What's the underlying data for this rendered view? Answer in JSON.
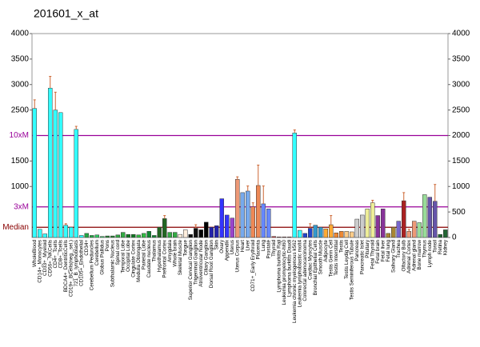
{
  "chart_data": {
    "type": "bar",
    "title": "201601_x_at",
    "categories": [
      "WholeBlood",
      "CD14+_Monocytes",
      "CD33+_Myeloid",
      "CD56+_NKCells",
      "CD4+_Tcells",
      "CD8+_Tcells",
      "BDCA4+_DentriticCells",
      "CD19+_BCells(neg._sel.)",
      "721_B_lymphoblasts",
      "CD105+_Endothelial",
      "CD34+",
      "Cerebellum Peduncles",
      "Cerebellum",
      "Globus Pallidus",
      "Pons",
      "Subthalamic Nucleus",
      "Spinal cord",
      "Temporal Lobe",
      "Occipital Lobe",
      "Cingulate Cortex",
      "Medulla Oblongata",
      "Parietal Lobe",
      "Caudate nucleus",
      "Thalamus",
      "Hypothalamus",
      "Prefrontal Cortex",
      "Amygdala",
      "Whole brain",
      "Skeletal Muscle",
      "Tongue",
      "Superior Cervical Ganglion",
      "Trigeminal Ganglion",
      "Atrioventricular Node",
      "Ciliary Ganglion",
      "Dorsal Root Ganglion",
      "Skin",
      "Ovary",
      "Appendix",
      "Uterus",
      "Uterus Corpus",
      "Heart",
      "Liver",
      "CD71+_Early Erythroid",
      "Placenta",
      "Lung",
      "Prostate",
      "Thyroid",
      "Lymphoma burkitts Raji",
      "Leukemia promyelocytic-hl60",
      "Lymphoma burkitts Daudi",
      "Leukemia chronic myelogenous k562",
      "Leukemia lymphoblastic molt4",
      "Colorectal adenocarcinoma",
      "Cardiac Myocytes",
      "Bronchial Epithelial Cells",
      "Smooth Muscle",
      "Adipocyte",
      "Testis Germ Cell",
      "Testis Interstitial",
      "Testis",
      "Testis Leydig Cell",
      "Testis Seminiferous Tubule",
      "Pancreas",
      "Pancreatic Islet",
      "Pituitary",
      "Fetal Thyroid",
      "Fetal brain",
      "Fetal liver",
      "Fetal lung",
      "Salivary Gland",
      "Trachea",
      "Olfactory Bulb",
      "Adrenal Cortex",
      "Adrenal gland",
      "Bone marrow",
      "Thymus",
      "Lymph node",
      "Tonsil",
      "Retina",
      "Kidney"
    ],
    "values": [
      2530,
      160,
      70,
      2930,
      2500,
      2450,
      240,
      200,
      2120,
      40,
      80,
      40,
      50,
      20,
      30,
      30,
      50,
      100,
      60,
      60,
      50,
      80,
      120,
      40,
      200,
      370,
      100,
      100,
      60,
      150,
      60,
      180,
      150,
      300,
      200,
      230,
      760,
      440,
      380,
      1140,
      880,
      910,
      600,
      1020,
      660,
      560,
      20,
      10,
      10,
      10,
      2050,
      140,
      80,
      180,
      240,
      200,
      170,
      250,
      90,
      120,
      120,
      110,
      360,
      440,
      560,
      680,
      430,
      560,
      80,
      200,
      320,
      720,
      120,
      320,
      290,
      840,
      790,
      710,
      60,
      150
    ],
    "errors": [
      170,
      null,
      null,
      230,
      350,
      null,
      30,
      null,
      60,
      null,
      null,
      null,
      null,
      null,
      null,
      null,
      null,
      null,
      null,
      null,
      null,
      null,
      null,
      null,
      null,
      60,
      null,
      null,
      null,
      null,
      null,
      70,
      null,
      null,
      null,
      null,
      null,
      null,
      null,
      50,
      null,
      100,
      80,
      400,
      350,
      null,
      null,
      null,
      null,
      null,
      60,
      null,
      null,
      90,
      null,
      null,
      null,
      180,
      null,
      null,
      null,
      null,
      null,
      null,
      null,
      50,
      null,
      null,
      null,
      null,
      null,
      160,
      40,
      null,
      null,
      null,
      null,
      330,
      null,
      null
    ],
    "colors": [
      "#33ffff",
      "#33ffff",
      "#33ffff",
      "#33ffff",
      "#33ffff",
      "#33ffff",
      "#33ffff",
      "#33ffff",
      "#33ffff",
      "#33ffff",
      "#22aa44",
      "#22aa44",
      "#33cc66",
      "#33cc66",
      "#228833",
      "#228833",
      "#33aa44",
      "#33aa44",
      "#117722",
      "#117722",
      "#33bb44",
      "#33bb44",
      "#118833",
      "#118833",
      "#226622",
      "#226622",
      "#33aa44",
      "#33aa44",
      "#ffeedd",
      "#ffeedd",
      "#111111",
      "#111111",
      "#000000",
      "#000000",
      "#2222aa",
      "#2222aa",
      "#3333ff",
      "#3333ff",
      "#9944cc",
      "#ee9977",
      "#77aaee",
      "#77aaee",
      "#ee8855",
      "#ee8855",
      "#6688ff",
      "#6688ff",
      "#cc3333",
      "#cc3333",
      "#aa2222",
      "#aa2222",
      "#33ffff",
      "#33ffff",
      "#2244cc",
      "#2244cc",
      "#3399cc",
      "#3399cc",
      "#ffaa33",
      "#ffaa33",
      "#ee8833",
      "#ee8833",
      "#ffcc88",
      "#ffcc88",
      "#cccccc",
      "#cccccc",
      "#eeee99",
      "#eeee99",
      "#883399",
      "#883399",
      "#aa8833",
      "#aa8833",
      "#7766cc",
      "#aa2222",
      "#ee9977",
      "#ee9977",
      "#99dd99",
      "#99dd99",
      "#6655aa",
      "#6655aa",
      "#226633",
      "#226633"
    ],
    "error_color": "#cc6633",
    "ylim": [
      0,
      4000
    ],
    "yticks": [
      4000,
      3500,
      3000,
      2500,
      1500,
      1000
    ],
    "y2lim": [
      0,
      4000
    ],
    "y2ticks": [
      4000,
      3500,
      3000,
      2500,
      2000,
      1500,
      1000,
      500,
      0
    ],
    "reference_lines": [
      {
        "value": 2000,
        "label": "10xM",
        "color": "#990099"
      },
      {
        "value": 600,
        "label": "3xM",
        "color": "#990099"
      },
      {
        "value": 200,
        "label": "Median",
        "color": "#880000"
      }
    ]
  }
}
